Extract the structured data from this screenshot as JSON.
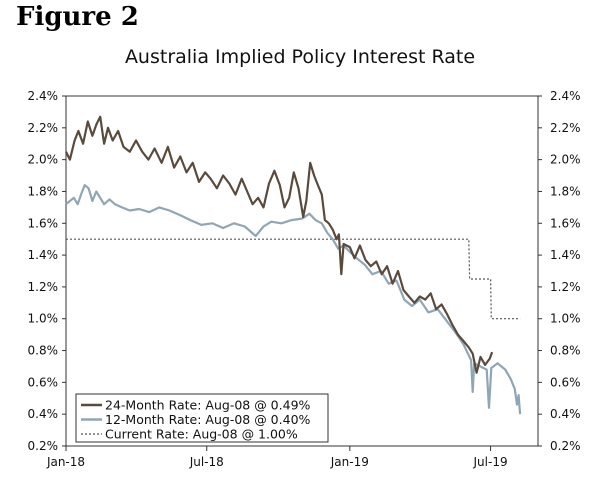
{
  "figure_label": "Figure 2",
  "chart_data": {
    "type": "line",
    "title": "Australia Implied Policy Interest Rate",
    "xlabel": "",
    "ylabel": "",
    "xlim": [
      "2018-01-01",
      "2019-08-31"
    ],
    "ylim": [
      0.2,
      2.4
    ],
    "y_ticks": [
      0.2,
      0.4,
      0.6,
      0.8,
      1.0,
      1.2,
      1.4,
      1.6,
      1.8,
      2.0,
      2.2,
      2.4
    ],
    "y_tick_labels": [
      "0.2%",
      "0.4%",
      "0.6%",
      "0.8%",
      "1.0%",
      "1.2%",
      "1.4%",
      "1.6%",
      "1.8%",
      "2.0%",
      "2.2%",
      "2.4%"
    ],
    "x_ticks": [
      "2018-01-01",
      "2018-07-01",
      "2019-01-01",
      "2019-07-01"
    ],
    "x_tick_labels": [
      "Jan-18",
      "Jul-18",
      "Jan-19",
      "Jul-19"
    ],
    "legend_position": "bottom-left",
    "series": [
      {
        "name": "24-Month Rate: Aug-08 @ 0.49%",
        "color": "#5a4a3c",
        "style": "solid",
        "points": [
          [
            "2018-01-01",
            2.05
          ],
          [
            "2018-01-06",
            2.0
          ],
          [
            "2018-01-12",
            2.12
          ],
          [
            "2018-01-17",
            2.18
          ],
          [
            "2018-01-23",
            2.1
          ],
          [
            "2018-01-29",
            2.24
          ],
          [
            "2018-02-04",
            2.15
          ],
          [
            "2018-02-09",
            2.22
          ],
          [
            "2018-02-14",
            2.27
          ],
          [
            "2018-02-19",
            2.1
          ],
          [
            "2018-02-24",
            2.2
          ],
          [
            "2018-03-02",
            2.12
          ],
          [
            "2018-03-09",
            2.18
          ],
          [
            "2018-03-16",
            2.08
          ],
          [
            "2018-03-24",
            2.05
          ],
          [
            "2018-04-01",
            2.12
          ],
          [
            "2018-04-09",
            2.05
          ],
          [
            "2018-04-17",
            2.0
          ],
          [
            "2018-04-25",
            2.07
          ],
          [
            "2018-05-04",
            1.98
          ],
          [
            "2018-05-12",
            2.08
          ],
          [
            "2018-05-20",
            1.95
          ],
          [
            "2018-05-28",
            2.02
          ],
          [
            "2018-06-05",
            1.92
          ],
          [
            "2018-06-13",
            1.98
          ],
          [
            "2018-06-21",
            1.86
          ],
          [
            "2018-06-29",
            1.92
          ],
          [
            "2018-07-06",
            1.88
          ],
          [
            "2018-07-14",
            1.82
          ],
          [
            "2018-07-22",
            1.9
          ],
          [
            "2018-07-30",
            1.85
          ],
          [
            "2018-08-07",
            1.78
          ],
          [
            "2018-08-15",
            1.88
          ],
          [
            "2018-08-22",
            1.8
          ],
          [
            "2018-08-29",
            1.72
          ],
          [
            "2018-09-05",
            1.76
          ],
          [
            "2018-09-12",
            1.7
          ],
          [
            "2018-09-19",
            1.85
          ],
          [
            "2018-09-26",
            1.93
          ],
          [
            "2018-10-03",
            1.84
          ],
          [
            "2018-10-09",
            1.7
          ],
          [
            "2018-10-15",
            1.76
          ],
          [
            "2018-10-21",
            1.92
          ],
          [
            "2018-10-27",
            1.82
          ],
          [
            "2018-11-02",
            1.64
          ],
          [
            "2018-11-06",
            1.74
          ],
          [
            "2018-11-11",
            1.98
          ],
          [
            "2018-11-16",
            1.9
          ],
          [
            "2018-11-21",
            1.84
          ],
          [
            "2018-11-26",
            1.78
          ],
          [
            "2018-11-30",
            1.62
          ],
          [
            "2018-12-05",
            1.6
          ],
          [
            "2018-12-10",
            1.56
          ],
          [
            "2018-12-15",
            1.5
          ],
          [
            "2018-12-18",
            1.53
          ],
          [
            "2018-12-21",
            1.28
          ],
          [
            "2018-12-24",
            1.47
          ],
          [
            "2019-01-01",
            1.45
          ],
          [
            "2019-01-07",
            1.38
          ],
          [
            "2019-01-14",
            1.46
          ],
          [
            "2019-01-21",
            1.37
          ],
          [
            "2019-01-28",
            1.33
          ],
          [
            "2019-02-04",
            1.36
          ],
          [
            "2019-02-11",
            1.28
          ],
          [
            "2019-02-18",
            1.33
          ],
          [
            "2019-02-25",
            1.22
          ],
          [
            "2019-03-04",
            1.3
          ],
          [
            "2019-03-11",
            1.18
          ],
          [
            "2019-03-18",
            1.14
          ],
          [
            "2019-03-25",
            1.1
          ],
          [
            "2019-04-01",
            1.14
          ],
          [
            "2019-04-08",
            1.12
          ],
          [
            "2019-04-15",
            1.16
          ],
          [
            "2019-04-22",
            1.06
          ],
          [
            "2019-04-29",
            1.09
          ],
          [
            "2019-05-06",
            1.03
          ],
          [
            "2019-05-13",
            0.96
          ],
          [
            "2019-05-20",
            0.9
          ],
          [
            "2019-05-27",
            0.86
          ],
          [
            "2019-06-03",
            0.82
          ],
          [
            "2019-06-08",
            0.78
          ],
          [
            "2019-06-13",
            0.66
          ],
          [
            "2019-06-18",
            0.76
          ],
          [
            "2019-06-24",
            0.71
          ],
          [
            "2019-06-30",
            0.75
          ],
          [
            "2019-07-03",
            0.79
          ]
        ]
      },
      {
        "name": "12-Month Rate: Aug-08 @ 0.40%",
        "color": "#8fa6b6",
        "style": "solid",
        "points": [
          [
            "2018-01-01",
            1.72
          ],
          [
            "2018-01-06",
            1.74
          ],
          [
            "2018-01-11",
            1.76
          ],
          [
            "2018-01-16",
            1.72
          ],
          [
            "2018-01-21",
            1.79
          ],
          [
            "2018-01-25",
            1.84
          ],
          [
            "2018-01-30",
            1.82
          ],
          [
            "2018-02-04",
            1.74
          ],
          [
            "2018-02-09",
            1.8
          ],
          [
            "2018-02-14",
            1.76
          ],
          [
            "2018-02-19",
            1.72
          ],
          [
            "2018-02-26",
            1.75
          ],
          [
            "2018-03-05",
            1.72
          ],
          [
            "2018-03-14",
            1.7
          ],
          [
            "2018-03-24",
            1.68
          ],
          [
            "2018-04-05",
            1.69
          ],
          [
            "2018-04-18",
            1.67
          ],
          [
            "2018-05-01",
            1.7
          ],
          [
            "2018-05-14",
            1.68
          ],
          [
            "2018-05-28",
            1.65
          ],
          [
            "2018-06-10",
            1.62
          ],
          [
            "2018-06-24",
            1.59
          ],
          [
            "2018-07-08",
            1.6
          ],
          [
            "2018-07-22",
            1.57
          ],
          [
            "2018-08-05",
            1.6
          ],
          [
            "2018-08-19",
            1.58
          ],
          [
            "2018-09-02",
            1.52
          ],
          [
            "2018-09-12",
            1.58
          ],
          [
            "2018-09-22",
            1.61
          ],
          [
            "2018-10-05",
            1.6
          ],
          [
            "2018-10-18",
            1.62
          ],
          [
            "2018-11-01",
            1.63
          ],
          [
            "2018-11-10",
            1.66
          ],
          [
            "2018-11-18",
            1.62
          ],
          [
            "2018-11-26",
            1.6
          ],
          [
            "2018-12-03",
            1.54
          ],
          [
            "2018-12-10",
            1.5
          ],
          [
            "2018-12-17",
            1.44
          ],
          [
            "2018-12-24",
            1.46
          ],
          [
            "2019-01-01",
            1.42
          ],
          [
            "2019-01-10",
            1.38
          ],
          [
            "2019-01-20",
            1.34
          ],
          [
            "2019-01-30",
            1.28
          ],
          [
            "2019-02-10",
            1.3
          ],
          [
            "2019-02-20",
            1.22
          ],
          [
            "2019-03-02",
            1.24
          ],
          [
            "2019-03-12",
            1.12
          ],
          [
            "2019-03-22",
            1.08
          ],
          [
            "2019-04-01",
            1.12
          ],
          [
            "2019-04-12",
            1.04
          ],
          [
            "2019-04-24",
            1.06
          ],
          [
            "2019-05-05",
            0.99
          ],
          [
            "2019-05-16",
            0.92
          ],
          [
            "2019-05-27",
            0.84
          ],
          [
            "2019-06-06",
            0.74
          ],
          [
            "2019-06-08",
            0.54
          ],
          [
            "2019-06-10",
            0.72
          ],
          [
            "2019-06-18",
            0.7
          ],
          [
            "2019-06-26",
            0.68
          ],
          [
            "2019-06-29",
            0.44
          ],
          [
            "2019-07-02",
            0.69
          ],
          [
            "2019-07-10",
            0.72
          ],
          [
            "2019-07-20",
            0.68
          ],
          [
            "2019-07-27",
            0.62
          ],
          [
            "2019-08-01",
            0.56
          ],
          [
            "2019-08-04",
            0.46
          ],
          [
            "2019-08-06",
            0.52
          ],
          [
            "2019-08-08",
            0.4
          ]
        ]
      },
      {
        "name": "Current Rate: Aug-08 @ 1.00%",
        "color": "#555555",
        "style": "dotted",
        "points": [
          [
            "2018-01-01",
            1.5
          ],
          [
            "2019-06-03",
            1.5
          ],
          [
            "2019-06-04",
            1.25
          ],
          [
            "2019-07-01",
            1.25
          ],
          [
            "2019-07-02",
            1.0
          ],
          [
            "2019-08-08",
            1.0
          ]
        ]
      }
    ]
  }
}
